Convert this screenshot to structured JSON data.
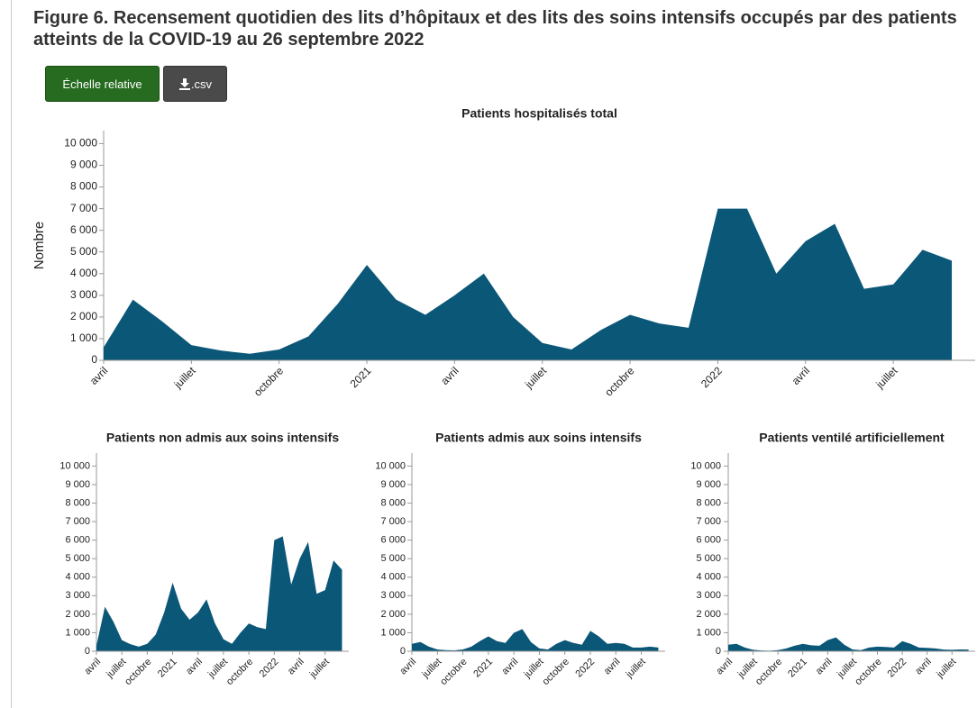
{
  "header": {
    "title": "Figure 6. Recensement quotidien des lits d’hôpitaux et des lits des soins intensifs occupés par des patients atteints de la COVID-19 au 26 septembre 2022"
  },
  "buttons": [
    {
      "label": "Échelle relative"
    },
    {
      "label": ".csv"
    }
  ],
  "chart_data": [
    {
      "type": "area",
      "title": "Patients hospitalisés total",
      "y_label": "Nombre",
      "color": "#0b5778",
      "x": [
        "2020-04",
        "2020-05",
        "2020-06",
        "2020-07",
        "2020-08",
        "2020-09",
        "2020-10",
        "2020-11",
        "2020-12",
        "2021-01",
        "2021-02",
        "2021-03",
        "2021-04",
        "2021-05",
        "2021-06",
        "2021-07",
        "2021-08",
        "2021-09",
        "2021-10",
        "2021-11",
        "2021-12",
        "2022-01",
        "2022-02",
        "2022-03",
        "2022-04",
        "2022-05",
        "2022-06",
        "2022-07",
        "2022-08",
        "2022-09"
      ],
      "values": [
        600,
        2800,
        1800,
        700,
        450,
        300,
        500,
        1100,
        2600,
        4400,
        2800,
        2100,
        3000,
        4000,
        2000,
        800,
        500,
        1400,
        2100,
        1700,
        1500,
        7000,
        7000,
        4000,
        5500,
        6300,
        3300,
        3500,
        5100,
        4600
      ],
      "ylim": [
        0,
        10600
      ],
      "yticks": [
        0,
        {
          "value": 1000,
          "label": "1 000"
        },
        {
          "value": 2000,
          "label": "2 000"
        },
        {
          "value": 3000,
          "label": "3 000"
        },
        {
          "value": 4000,
          "label": "4 000"
        },
        {
          "value": 5000,
          "label": "5 000"
        },
        {
          "value": 6000,
          "label": "6 000"
        },
        {
          "value": 7000,
          "label": "7 000"
        },
        {
          "value": 8000,
          "label": "8 000"
        },
        {
          "value": 9000,
          "label": "9 000"
        },
        {
          "value": 10000,
          "label": "10 000"
        }
      ],
      "xticks": [
        {
          "value": "2020-04",
          "label": "avril"
        },
        {
          "value": "2020-07",
          "label": "juillet"
        },
        {
          "value": "2020-10",
          "label": "octobre"
        },
        {
          "value": "2021-01",
          "label": "2021"
        },
        {
          "value": "2021-04",
          "label": "avril"
        },
        {
          "value": "2021-07",
          "label": "juillet"
        },
        {
          "value": "2021-10",
          "label": "octobre"
        },
        {
          "value": "2022-01",
          "label": "2022"
        },
        {
          "value": "2022-04",
          "label": "avril"
        },
        {
          "value": "2022-07",
          "label": "juillet"
        }
      ]
    },
    {
      "type": "area",
      "title": "Patients non admis aux soins intensifs",
      "color": "#0b5778",
      "x": [
        "2020-04",
        "2020-05",
        "2020-06",
        "2020-07",
        "2020-08",
        "2020-09",
        "2020-10",
        "2020-11",
        "2020-12",
        "2021-01",
        "2021-02",
        "2021-03",
        "2021-04",
        "2021-05",
        "2021-06",
        "2021-07",
        "2021-08",
        "2021-09",
        "2021-10",
        "2021-11",
        "2021-12",
        "2022-01",
        "2022-02",
        "2022-03",
        "2022-04",
        "2022-05",
        "2022-06",
        "2022-07",
        "2022-08",
        "2022-09"
      ],
      "values": [
        300,
        2400,
        1600,
        600,
        380,
        250,
        400,
        900,
        2100,
        3700,
        2300,
        1700,
        2100,
        2800,
        1500,
        650,
        400,
        1000,
        1500,
        1300,
        1200,
        6000,
        6200,
        3600,
        5000,
        5900,
        3100,
        3300,
        4900,
        4400
      ],
      "ylim": [
        0,
        10700
      ],
      "yticks": [
        0,
        {
          "value": 1000,
          "label": "1 000"
        },
        {
          "value": 2000,
          "label": "2 000"
        },
        {
          "value": 3000,
          "label": "3 000"
        },
        {
          "value": 4000,
          "label": "4 000"
        },
        {
          "value": 5000,
          "label": "5 000"
        },
        {
          "value": 6000,
          "label": "6 000"
        },
        {
          "value": 7000,
          "label": "7 000"
        },
        {
          "value": 8000,
          "label": "8 000"
        },
        {
          "value": 9000,
          "label": "9 000"
        },
        {
          "value": 10000,
          "label": "10 000"
        }
      ],
      "xticks": [
        {
          "value": "2020-04",
          "label": "avril"
        },
        {
          "value": "2020-07",
          "label": "juillet"
        },
        {
          "value": "2020-10",
          "label": "octobre"
        },
        {
          "value": "2021-01",
          "label": "2021"
        },
        {
          "value": "2021-04",
          "label": "avril"
        },
        {
          "value": "2021-07",
          "label": "juillet"
        },
        {
          "value": "2021-10",
          "label": "octobre"
        },
        {
          "value": "2022-01",
          "label": "2022"
        },
        {
          "value": "2022-04",
          "label": "avril"
        },
        {
          "value": "2022-07",
          "label": "juillet"
        }
      ]
    },
    {
      "type": "area",
      "title": "Patients admis aux soins intensifs",
      "color": "#0b5778",
      "x": [
        "2020-04",
        "2020-05",
        "2020-06",
        "2020-07",
        "2020-08",
        "2020-09",
        "2020-10",
        "2020-11",
        "2020-12",
        "2021-01",
        "2021-02",
        "2021-03",
        "2021-04",
        "2021-05",
        "2021-06",
        "2021-07",
        "2021-08",
        "2021-09",
        "2021-10",
        "2021-11",
        "2021-12",
        "2022-01",
        "2022-02",
        "2022-03",
        "2022-04",
        "2022-05",
        "2022-06",
        "2022-07",
        "2022-08",
        "2022-09"
      ],
      "values": [
        400,
        500,
        250,
        100,
        60,
        50,
        100,
        250,
        550,
        800,
        550,
        450,
        1000,
        1200,
        500,
        150,
        100,
        400,
        600,
        450,
        350,
        1100,
        800,
        400,
        450,
        400,
        200,
        200,
        250,
        200
      ],
      "ylim": [
        0,
        10700
      ],
      "yticks": [
        0,
        {
          "value": 1000,
          "label": "1 000"
        },
        {
          "value": 2000,
          "label": "2 000"
        },
        {
          "value": 3000,
          "label": "3 000"
        },
        {
          "value": 4000,
          "label": "4 000"
        },
        {
          "value": 5000,
          "label": "5 000"
        },
        {
          "value": 6000,
          "label": "6 000"
        },
        {
          "value": 7000,
          "label": "7 000"
        },
        {
          "value": 8000,
          "label": "8 000"
        },
        {
          "value": 9000,
          "label": "9 000"
        },
        {
          "value": 10000,
          "label": "10 000"
        }
      ],
      "xticks": [
        {
          "value": "2020-04",
          "label": "avril"
        },
        {
          "value": "2020-07",
          "label": "juillet"
        },
        {
          "value": "2020-10",
          "label": "octobre"
        },
        {
          "value": "2021-01",
          "label": "2021"
        },
        {
          "value": "2021-04",
          "label": "avril"
        },
        {
          "value": "2021-07",
          "label": "juillet"
        },
        {
          "value": "2021-10",
          "label": "octobre"
        },
        {
          "value": "2022-01",
          "label": "2022"
        },
        {
          "value": "2022-04",
          "label": "avril"
        },
        {
          "value": "2022-07",
          "label": "juillet"
        }
      ]
    },
    {
      "type": "area",
      "title": "Patients ventilé artificiellement",
      "color": "#0b5778",
      "x": [
        "2020-04",
        "2020-05",
        "2020-06",
        "2020-07",
        "2020-08",
        "2020-09",
        "2020-10",
        "2020-11",
        "2020-12",
        "2021-01",
        "2021-02",
        "2021-03",
        "2021-04",
        "2021-05",
        "2021-06",
        "2021-07",
        "2021-08",
        "2021-09",
        "2021-10",
        "2021-11",
        "2021-12",
        "2022-01",
        "2022-02",
        "2022-03",
        "2022-04",
        "2022-05",
        "2022-06",
        "2022-07",
        "2022-08",
        "2022-09"
      ],
      "values": [
        350,
        400,
        200,
        80,
        40,
        30,
        60,
        150,
        300,
        400,
        320,
        300,
        600,
        750,
        350,
        100,
        60,
        200,
        250,
        230,
        200,
        550,
        400,
        200,
        180,
        150,
        90,
        80,
        100,
        90
      ],
      "ylim": [
        0,
        10700
      ],
      "yticks": [
        0,
        {
          "value": 1000,
          "label": "1 000"
        },
        {
          "value": 2000,
          "label": "2 000"
        },
        {
          "value": 3000,
          "label": "3 000"
        },
        {
          "value": 4000,
          "label": "4 000"
        },
        {
          "value": 5000,
          "label": "5 000"
        },
        {
          "value": 6000,
          "label": "6 000"
        },
        {
          "value": 7000,
          "label": "7 000"
        },
        {
          "value": 8000,
          "label": "8 000"
        },
        {
          "value": 9000,
          "label": "9 000"
        },
        {
          "value": 10000,
          "label": "10 000"
        }
      ],
      "xticks": [
        {
          "value": "2020-04",
          "label": "avril"
        },
        {
          "value": "2020-07",
          "label": "juillet"
        },
        {
          "value": "2020-10",
          "label": "octobre"
        },
        {
          "value": "2021-01",
          "label": "2021"
        },
        {
          "value": "2021-04",
          "label": "avril"
        },
        {
          "value": "2021-07",
          "label": "juillet"
        },
        {
          "value": "2021-10",
          "label": "octobre"
        },
        {
          "value": "2022-01",
          "label": "2022"
        },
        {
          "value": "2022-04",
          "label": "avril"
        },
        {
          "value": "2022-07",
          "label": "juillet"
        }
      ]
    }
  ]
}
